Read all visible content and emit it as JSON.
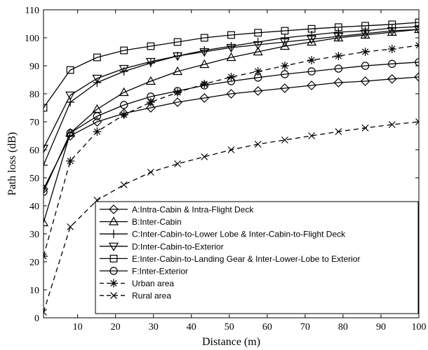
{
  "chart_data": {
    "type": "line",
    "title": "",
    "xlabel": "Distance (m)",
    "ylabel": "Path loss (dB)",
    "xlim": [
      1,
      100
    ],
    "ylim": [
      0,
      110
    ],
    "xticks": [
      10,
      20,
      30,
      40,
      50,
      60,
      70,
      80,
      90,
      100
    ],
    "yticks": [
      0,
      10,
      20,
      30,
      40,
      50,
      60,
      70,
      80,
      90,
      100,
      110
    ],
    "grid": false,
    "legend_position": "bottom-right",
    "x": [
      1,
      8.07,
      15.14,
      22.21,
      29.29,
      36.36,
      43.43,
      50.5,
      57.57,
      64.64,
      71.71,
      78.79,
      85.86,
      92.93,
      100
    ],
    "series": [
      {
        "name": "A:Intra-Cabin & Intra-Flight Deck",
        "marker": "diamond",
        "dash": "solid",
        "values": [
          46,
          65,
          70,
          73,
          75,
          77,
          78.5,
          80,
          81,
          82,
          83,
          84,
          84.5,
          85.3,
          86
        ]
      },
      {
        "name": "B:Inter-Cabin",
        "marker": "triangle-up",
        "dash": "solid",
        "values": [
          34,
          66,
          74.5,
          80.5,
          84.5,
          88,
          90.5,
          93,
          95,
          97,
          98.5,
          100,
          101,
          102,
          103
        ]
      },
      {
        "name": "C:Inter-Cabin-to-Lower Lobe & Inter-Cabin-to-Flight Deck",
        "marker": "plus",
        "dash": "solid",
        "values": [
          54.5,
          77,
          84,
          88,
          91,
          93.5,
          95.5,
          97,
          98.5,
          100,
          101,
          102,
          102.5,
          103.5,
          104
        ]
      },
      {
        "name": "D:Inter-Cabin-to-Exterior",
        "marker": "triangle-down",
        "dash": "solid",
        "values": [
          60.5,
          79.5,
          85.5,
          89,
          91.5,
          93.5,
          95,
          96.5,
          97.5,
          98.5,
          99.5,
          100.5,
          101.5,
          102.5,
          103
        ]
      },
      {
        "name": "E:Inter-Cabin-to-Landing Gear & Inter-Lower-Lobe to Exterior",
        "marker": "square",
        "dash": "solid",
        "values": [
          75,
          88.5,
          93,
          95.5,
          97,
          98.5,
          100,
          101,
          101.8,
          102.5,
          103.2,
          103.8,
          104.3,
          104.8,
          105.5
        ]
      },
      {
        "name": "F:Inter-Exterior",
        "marker": "circle",
        "dash": "solid",
        "values": [
          45,
          66,
          72,
          76,
          79,
          81,
          83,
          84.5,
          85.8,
          87,
          88,
          89,
          90,
          90.7,
          91.3
        ]
      },
      {
        "name": "Urban area",
        "marker": "asterisk",
        "dash": "dashed",
        "values": [
          22,
          56,
          66.5,
          72.5,
          77,
          80.5,
          83.5,
          86,
          88,
          90,
          92,
          93.5,
          95,
          96,
          97.3
        ]
      },
      {
        "name": "Rural area",
        "marker": "x",
        "dash": "dashed",
        "values": [
          2,
          32.5,
          42,
          47.5,
          52,
          55,
          57.5,
          60,
          62,
          63.5,
          65,
          66.5,
          67.8,
          69,
          70
        ]
      }
    ]
  }
}
